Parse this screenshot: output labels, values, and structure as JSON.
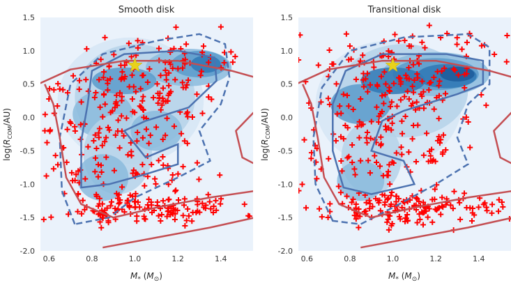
{
  "chart_data": [
    {
      "type": "scatter",
      "title": "Smooth disk",
      "xlabel": "M* (M☉)",
      "ylabel": "log(RCOM/AU)",
      "xlim": [
        0.56,
        1.55
      ],
      "ylim": [
        -2.0,
        1.5
      ],
      "xticks": [
        "0.6",
        "0.8",
        "1.0",
        "1.2",
        "1.4"
      ],
      "yticks": [
        "1.5",
        "1.0",
        "0.5",
        "0.0",
        "-0.5",
        "-1.0",
        "-1.5",
        "-2.0"
      ],
      "background": "#eaf2fb",
      "kde_colors": [
        "#d6e6f4",
        "#b5d2e9",
        "#8bbbdd",
        "#5b9bcb",
        "#2f78b5",
        "#1c5a9a"
      ],
      "contour_color": "#4c72b0",
      "model_curve_color": "#c44e52",
      "marker_color": "#ff0000",
      "star_color": "#e8d21b",
      "star": {
        "x": 1.0,
        "y": 0.78
      },
      "series": [
        {
          "name": "data points",
          "marker": "+",
          "count": 420
        },
        {
          "name": "KDE density",
          "marker": "filled contour"
        },
        {
          "name": "contours",
          "marker": "solid and dashed lines"
        },
        {
          "name": "model boundary",
          "marker": "line"
        }
      ]
    },
    {
      "type": "scatter",
      "title": "Transitional disk",
      "xlabel": "M* (M☉)",
      "ylabel": "log(RCOM/AU)",
      "xlim": [
        0.56,
        1.55
      ],
      "ylim": [
        -2.0,
        1.5
      ],
      "xticks": [
        "0.6",
        "0.8",
        "1.0",
        "1.2",
        "1.4"
      ],
      "yticks": [
        "1.5",
        "1.0",
        "0.5",
        "0.0",
        "-0.5",
        "-1.0",
        "-1.5",
        "-2.0"
      ],
      "background": "#eaf2fb",
      "kde_colors": [
        "#d6e6f4",
        "#b5d2e9",
        "#8bbbdd",
        "#5b9bcb",
        "#2f78b5",
        "#1c5a9a"
      ],
      "contour_color": "#4c72b0",
      "model_curve_color": "#c44e52",
      "marker_color": "#ff0000",
      "star_color": "#e8d21b",
      "star": {
        "x": 1.0,
        "y": 0.78
      },
      "series": [
        {
          "name": "data points",
          "marker": "+",
          "count": 420
        },
        {
          "name": "KDE density",
          "marker": "filled contour"
        },
        {
          "name": "contours",
          "marker": "solid and dashed lines"
        },
        {
          "name": "model boundary",
          "marker": "line"
        }
      ]
    }
  ]
}
